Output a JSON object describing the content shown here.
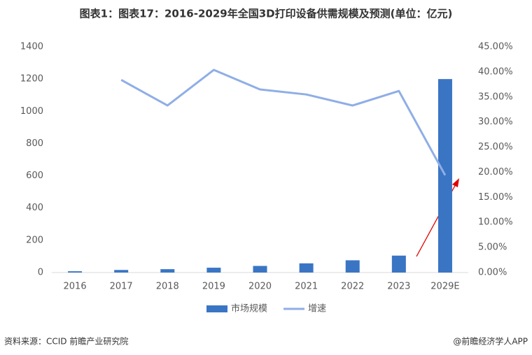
{
  "chart_data": {
    "type": "bar-line",
    "title": "图表1：图表17：2016-2029年全国3D打印设备供需规模及预测(单位：亿元)",
    "categories": [
      "2016",
      "2017",
      "2018",
      "2019",
      "2020",
      "2021",
      "2022",
      "2023",
      "2029E"
    ],
    "series": [
      {
        "name": "市场规模",
        "type": "bar",
        "color": "#3a75c4",
        "values": [
          8,
          16,
          21,
          30,
          41,
          57,
          76,
          105,
          1200
        ]
      },
      {
        "name": "增速",
        "type": "line",
        "axis": "y2",
        "color": "#8faee6",
        "values": [
          null,
          38.4,
          33.3,
          40.4,
          36.5,
          35.5,
          33.3,
          36.2,
          19.4
        ]
      }
    ],
    "ylim": [
      0,
      1400
    ],
    "yticks": [
      0,
      200,
      400,
      600,
      800,
      1000,
      1200,
      1400
    ],
    "y2lim": [
      0,
      45
    ],
    "y2ticks": [
      {
        "value": 0,
        "label": "0.00%"
      },
      {
        "value": 5,
        "label": "5.00%"
      },
      {
        "value": 10,
        "label": "10.00%"
      },
      {
        "value": 15,
        "label": "15.00%"
      },
      {
        "value": 20,
        "label": "20.00%"
      },
      {
        "value": 25,
        "label": "25.00%"
      },
      {
        "value": 30,
        "label": "30.00%"
      },
      {
        "value": 35,
        "label": "35.00%"
      },
      {
        "value": 40,
        "label": "40.00%"
      },
      {
        "value": 45,
        "label": "45.00%"
      }
    ],
    "source": "资料来源：CCID 前瞻产业研究院",
    "credit": "@前瞻经济学人APP"
  }
}
